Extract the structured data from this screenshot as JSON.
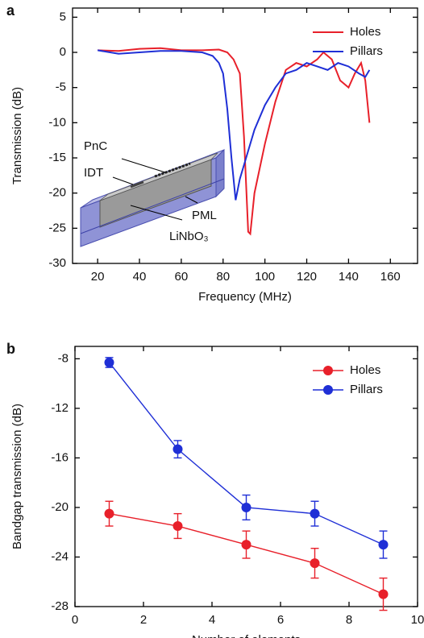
{
  "chart_data": [
    {
      "type": "line",
      "panel_label": "a",
      "x_label": "Frequency (MHz)",
      "y_label": "Transmission (dB)",
      "xlim": [
        8,
        173
      ],
      "ylim": [
        -30,
        6.3
      ],
      "xticks": [
        20,
        40,
        60,
        80,
        100,
        120,
        140,
        160
      ],
      "yticks": [
        5,
        0,
        -5,
        -10,
        -15,
        -20,
        -25,
        -30
      ],
      "legend": "top-right",
      "annotations": [
        "PnC",
        "IDT",
        "PML",
        "LiNbO₃"
      ],
      "series": [
        {
          "name": "Holes",
          "color": "#e8202a",
          "x": [
            20,
            30,
            40,
            50,
            60,
            70,
            78,
            82,
            85,
            88,
            90,
            92,
            93,
            95,
            100,
            105,
            110,
            115,
            120,
            125,
            128,
            132,
            136,
            140,
            143,
            146,
            148,
            150
          ],
          "values": [
            0.3,
            0.2,
            0.5,
            0.6,
            0.3,
            0.3,
            0.4,
            0,
            -1,
            -3,
            -12,
            -25.5,
            -25.8,
            -20,
            -13,
            -7,
            -2.5,
            -1.5,
            -2,
            -1,
            0,
            -1,
            -4,
            -5,
            -3,
            -1.5,
            -4,
            -10
          ]
        },
        {
          "name": "Pillars",
          "color": "#1f2fd6",
          "x": [
            20,
            30,
            40,
            50,
            60,
            70,
            75,
            78,
            80,
            82,
            84,
            86,
            88,
            90,
            92,
            95,
            100,
            105,
            110,
            115,
            120,
            125,
            130,
            135,
            140,
            145,
            148,
            150
          ],
          "values": [
            0.3,
            -0.2,
            0,
            0.2,
            0.2,
            0,
            -0.5,
            -1.5,
            -3,
            -8,
            -15,
            -21,
            -18,
            -16,
            -14,
            -11,
            -7.5,
            -5,
            -3,
            -2.5,
            -1.5,
            -2,
            -2.5,
            -1.5,
            -2,
            -3,
            -3.5,
            -2.5
          ]
        }
      ]
    },
    {
      "type": "errorbar",
      "panel_label": "b",
      "x_label": "Number of elements",
      "y_label": "Bandgap transmission (dB)",
      "xlim": [
        0,
        10
      ],
      "ylim": [
        -28,
        -7
      ],
      "xticks": [
        0,
        2,
        4,
        6,
        8,
        10
      ],
      "yticks": [
        -8,
        -12,
        -16,
        -20,
        -24,
        -28
      ],
      "legend": "top-right",
      "series": [
        {
          "name": "Holes",
          "color": "#e8202a",
          "x": [
            1,
            3,
            5,
            7,
            9
          ],
          "values": [
            -20.5,
            -21.5,
            -23,
            -24.5,
            -27
          ],
          "errors": [
            1,
            1,
            1.1,
            1.2,
            1.3
          ]
        },
        {
          "name": "Pillars",
          "color": "#1f2fd6",
          "x": [
            1,
            3,
            5,
            7,
            9
          ],
          "values": [
            -8.3,
            -15.3,
            -20,
            -20.5,
            -23
          ],
          "errors": [
            0.4,
            0.7,
            1,
            1,
            1.1
          ]
        }
      ]
    }
  ]
}
